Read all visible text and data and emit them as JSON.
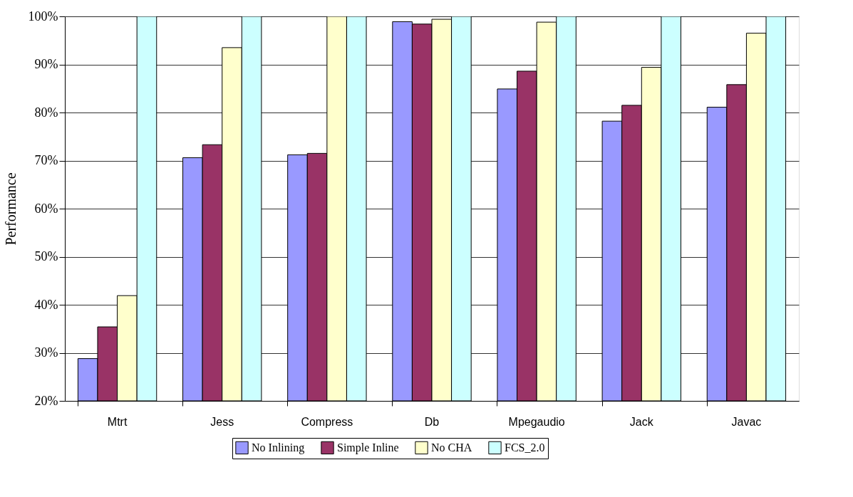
{
  "chart_data": {
    "type": "bar",
    "ylabel": "Performance",
    "categories": [
      "Mtrt",
      "Jess",
      "Compress",
      "Db",
      "Mpegaudio",
      "Jack",
      "Javac"
    ],
    "series": [
      {
        "name": "No Inlining",
        "color": "#9999ff",
        "values": [
          28.8,
          70.6,
          71.2,
          98.9,
          84.9,
          78.2,
          81.1
        ]
      },
      {
        "name": "Simple Inline",
        "color": "#993366",
        "values": [
          35.4,
          73.3,
          71.5,
          98.4,
          88.6,
          81.5,
          85.8
        ]
      },
      {
        "name": "No CHA",
        "color": "#ffffcc",
        "values": [
          41.9,
          93.5,
          100,
          99.4,
          98.8,
          89.4,
          96.5
        ]
      },
      {
        "name": "FCS_2.0",
        "color": "#ccffff",
        "values": [
          100,
          100,
          100,
          100,
          100,
          100,
          100
        ]
      }
    ],
    "ylim": [
      20,
      100
    ],
    "yticks": [
      {
        "value": 20,
        "label": "20%"
      },
      {
        "value": 30,
        "label": "30%"
      },
      {
        "value": 40,
        "label": "40%"
      },
      {
        "value": 50,
        "label": "50%"
      },
      {
        "value": 60,
        "label": "60%"
      },
      {
        "value": 70,
        "label": "70%"
      },
      {
        "value": 80,
        "label": "80%"
      },
      {
        "value": 90,
        "label": "90%"
      },
      {
        "value": 100,
        "label": "100%"
      }
    ],
    "grid": "y",
    "legend": "bottom"
  }
}
